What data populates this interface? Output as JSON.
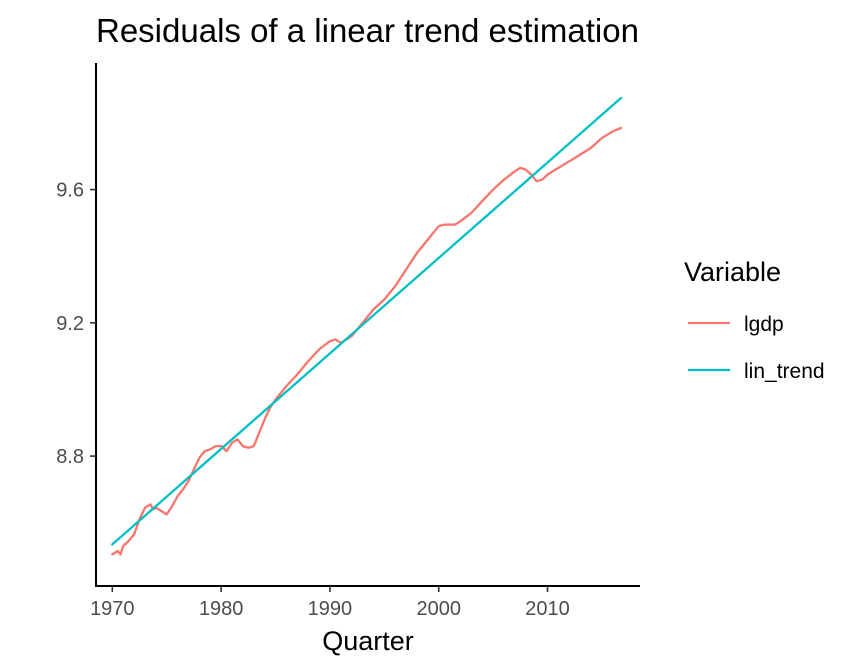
{
  "chart_data": {
    "type": "line",
    "title": "Residuals of a linear trend estimation",
    "xlabel": "Quarter",
    "ylabel": "",
    "xlim": [
      1968.5,
      2018.5
    ],
    "ylim": [
      8.41,
      9.98
    ],
    "x_ticks": [
      1970,
      1980,
      1990,
      2000,
      2010
    ],
    "x_tick_labels": [
      "1970",
      "1980",
      "1990",
      "2000",
      "2010"
    ],
    "y_ticks": [
      8.8,
      9.2,
      9.6
    ],
    "y_tick_labels": [
      "8.8",
      "9.2",
      "9.6"
    ],
    "grid": false,
    "legend": {
      "title": "Variable",
      "position": "right"
    },
    "series": [
      {
        "name": "lgdp",
        "color": "#F8766D",
        "x": [
          1970.0,
          1970.5,
          1970.75,
          1971.0,
          1971.5,
          1972.0,
          1972.5,
          1973.0,
          1973.5,
          1973.75,
          1974.0,
          1974.5,
          1975.0,
          1975.5,
          1976.0,
          1976.5,
          1977.0,
          1977.5,
          1978.0,
          1978.5,
          1979.0,
          1979.5,
          1980.0,
          1980.5,
          1981.0,
          1981.5,
          1982.0,
          1982.5,
          1983.0,
          1983.5,
          1984.0,
          1984.5,
          1985.0,
          1986.0,
          1987.0,
          1988.0,
          1989.0,
          1990.0,
          1990.5,
          1991.0,
          1991.5,
          1992.0,
          1993.0,
          1994.0,
          1995.0,
          1996.0,
          1997.0,
          1998.0,
          1999.0,
          2000.0,
          2000.5,
          2001.0,
          2001.5,
          2002.0,
          2003.0,
          2004.0,
          2005.0,
          2006.0,
          2007.0,
          2007.5,
          2008.0,
          2008.5,
          2009.0,
          2009.5,
          2010.0,
          2011.0,
          2012.0,
          2013.0,
          2014.0,
          2015.0,
          2016.0,
          2016.75
        ],
        "values": [
          8.505,
          8.515,
          8.505,
          8.53,
          8.545,
          8.565,
          8.61,
          8.645,
          8.655,
          8.64,
          8.645,
          8.635,
          8.625,
          8.65,
          8.68,
          8.7,
          8.725,
          8.76,
          8.795,
          8.815,
          8.82,
          8.83,
          8.83,
          8.815,
          8.84,
          8.85,
          8.83,
          8.825,
          8.83,
          8.87,
          8.91,
          8.945,
          8.97,
          9.01,
          9.045,
          9.085,
          9.12,
          9.145,
          9.15,
          9.14,
          9.15,
          9.16,
          9.2,
          9.24,
          9.27,
          9.31,
          9.36,
          9.41,
          9.45,
          9.49,
          9.495,
          9.495,
          9.495,
          9.505,
          9.53,
          9.565,
          9.6,
          9.63,
          9.655,
          9.665,
          9.66,
          9.645,
          9.625,
          9.63,
          9.645,
          9.665,
          9.685,
          9.705,
          9.725,
          9.755,
          9.775,
          9.785
        ]
      },
      {
        "name": "lin_trend",
        "color": "#00BFC4",
        "x": [
          1970.0,
          2016.75
        ],
        "values": [
          8.535,
          9.875
        ]
      }
    ]
  }
}
